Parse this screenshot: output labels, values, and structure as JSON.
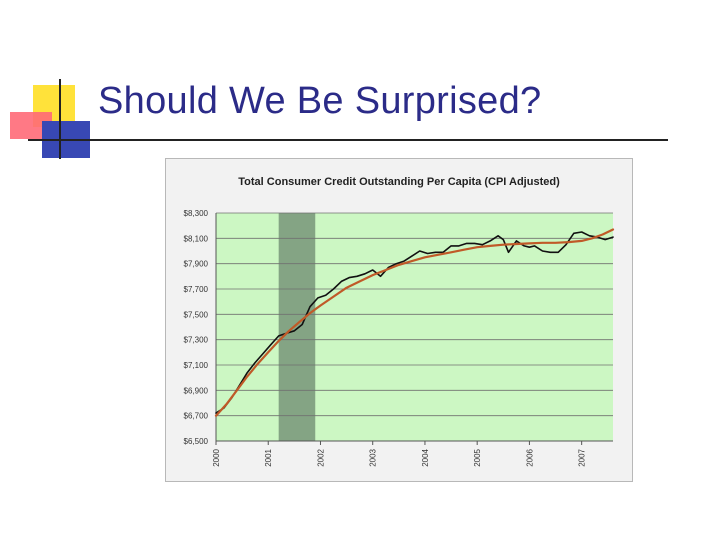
{
  "slide": {
    "title": "Should We Be Surprised?"
  },
  "colors": {
    "title": "#2b2b88",
    "plot_background": "#ccf7c3",
    "recession_band": "#84a484",
    "grid": "#707070",
    "actual_line": "#111111",
    "trend_line": "#c05a28"
  },
  "chart_data": {
    "type": "line",
    "title": "Total Consumer Credit Outstanding Per Capita (CPI Adjusted)",
    "xlabel": "",
    "ylabel": "",
    "xlim": [
      2000,
      2007.6
    ],
    "ylim": [
      6500,
      8300
    ],
    "grid": true,
    "legend": "none",
    "x_ticks": [
      2000,
      2001,
      2002,
      2003,
      2004,
      2005,
      2006,
      2007
    ],
    "x_tick_labels": [
      "2000",
      "2001",
      "2002",
      "2003",
      "2004",
      "2005",
      "2006",
      "2007"
    ],
    "y_ticks": [
      6500,
      6700,
      6900,
      7100,
      7300,
      7500,
      7700,
      7900,
      8100,
      8300
    ],
    "y_tick_labels": [
      "$6,500",
      "$6,700",
      "$6,900",
      "$7,100",
      "$7,300",
      "$7,500",
      "$7,700",
      "$7,900",
      "$8,100",
      "$8,300"
    ],
    "shaded_regions": [
      {
        "from": 2001.2,
        "to": 2001.9
      }
    ],
    "series": [
      {
        "style": "actual",
        "x": [
          2000.0,
          2000.15,
          2000.3,
          2000.45,
          2000.6,
          2000.75,
          2000.9,
          2001.05,
          2001.2,
          2001.35,
          2001.5,
          2001.65,
          2001.8,
          2001.95,
          2002.1,
          2002.25,
          2002.4,
          2002.55,
          2002.7,
          2002.85,
          2003.0,
          2003.15,
          2003.3,
          2003.45,
          2003.6,
          2003.75,
          2003.9,
          2004.05,
          2004.2,
          2004.35,
          2004.5,
          2004.65,
          2004.8,
          2004.95,
          2005.1,
          2005.25,
          2005.4,
          2005.5,
          2005.6,
          2005.75,
          2005.9,
          2006.0,
          2006.1,
          2006.25,
          2006.4,
          2006.55,
          2006.7,
          2006.85,
          2007.0,
          2007.15,
          2007.3,
          2007.45,
          2007.6
        ],
        "y": [
          6720,
          6760,
          6840,
          6940,
          7040,
          7120,
          7190,
          7260,
          7330,
          7350,
          7370,
          7420,
          7560,
          7630,
          7650,
          7700,
          7760,
          7790,
          7800,
          7820,
          7850,
          7800,
          7870,
          7900,
          7920,
          7960,
          8000,
          7980,
          7990,
          7990,
          8040,
          8040,
          8060,
          8060,
          8050,
          8080,
          8120,
          8090,
          7990,
          8080,
          8040,
          8030,
          8040,
          8000,
          7990,
          7990,
          8050,
          8140,
          8150,
          8120,
          8110,
          8090,
          8110
        ]
      },
      {
        "style": "trend",
        "x": [
          2000.0,
          2000.2,
          2000.4,
          2000.6,
          2000.8,
          2001.0,
          2001.2,
          2001.4,
          2001.6,
          2001.8,
          2002.0,
          2002.25,
          2002.5,
          2002.75,
          2003.0,
          2003.25,
          2003.5,
          2003.75,
          2004.0,
          2004.25,
          2004.5,
          2004.75,
          2005.0,
          2005.25,
          2005.5,
          2005.75,
          2006.0,
          2006.25,
          2006.5,
          2006.75,
          2007.0,
          2007.2,
          2007.4,
          2007.6
        ],
        "y": [
          6700,
          6790,
          6900,
          7010,
          7110,
          7200,
          7290,
          7370,
          7440,
          7510,
          7570,
          7640,
          7710,
          7760,
          7810,
          7850,
          7890,
          7920,
          7950,
          7970,
          7990,
          8010,
          8030,
          8040,
          8050,
          8055,
          8060,
          8065,
          8065,
          8070,
          8080,
          8100,
          8130,
          8170
        ]
      }
    ]
  }
}
